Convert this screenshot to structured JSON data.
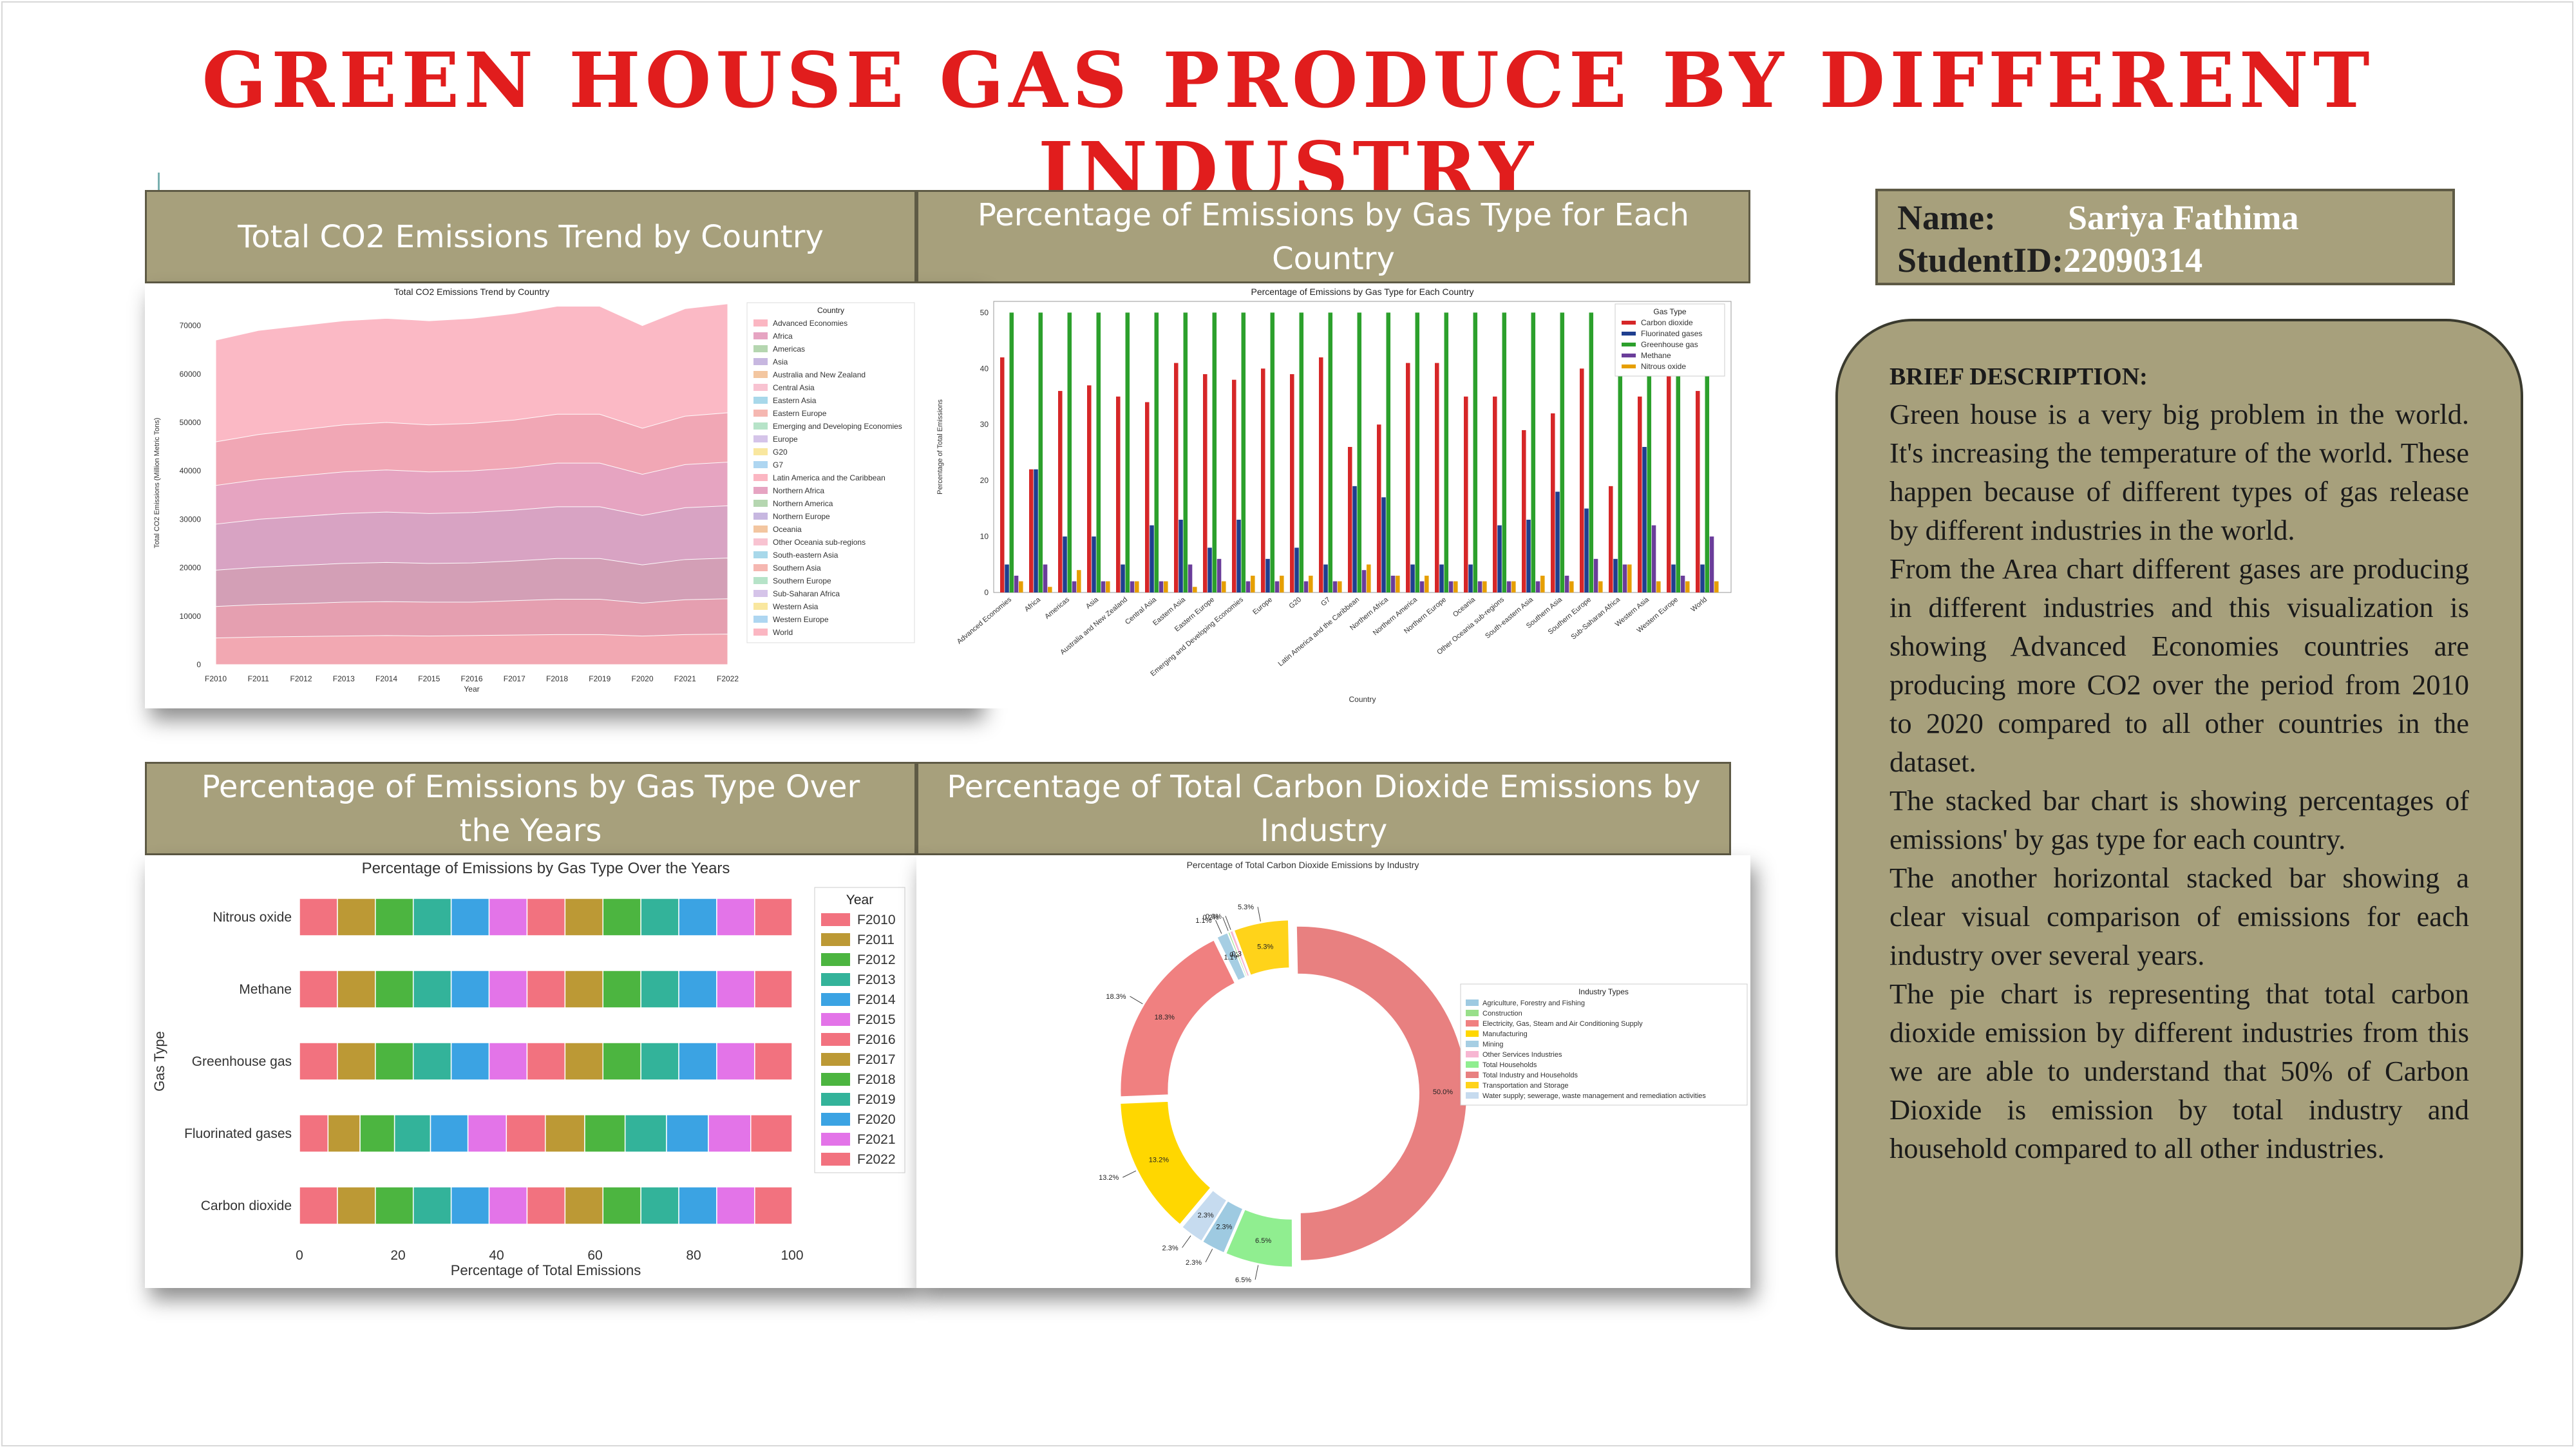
{
  "title": "GREEN HOUSE GAS PRODUCE BY DIFFERENT INDUSTRY",
  "headers": {
    "h1": "Total CO2 Emissions Trend by Country",
    "h2": "Percentage of Emissions by Gas Type for Each Country",
    "h3": "Percentage of Emissions by Gas Type Over the Years",
    "h4": "Percentage of Total Carbon Dioxide Emissions by Industry"
  },
  "student": {
    "name_label": "Name:",
    "name_value": "Sariya Fathima",
    "id_label": "StudentID:",
    "id_value": "22090314"
  },
  "description": {
    "heading": "BRIEF DESCRIPTION:",
    "paragraphs": [
      "Green house is a very big problem in the world. It's increasing the temperature of the world. These happen because of different types of gas release by different industries in the world.",
      "From the Area chart different gases are producing in different industries and this visualization is showing Advanced Economies countries are producing more CO2 over the period from 2010 to 2020 compared to all other countries in the dataset.",
      "The stacked bar chart is showing percentages of emissions' by gas type for each country.",
      "The another  horizontal stacked bar showing a clear visual comparison of emissions for each industry over several years.",
      "The pie chart is representing  that total carbon dioxide emission by different industries from this we are able to understand that 50% of Carbon Dioxide is emission by total industry and household compared to all other industries."
    ]
  },
  "chart_data": [
    {
      "type": "area",
      "title": "Total CO2 Emissions Trend by Country",
      "xlabel": "Year",
      "ylabel": "Total CO2 Emissions (Million Metric Tons)",
      "ylim": [
        0,
        75000
      ],
      "yticks": [
        0,
        10000,
        20000,
        30000,
        40000,
        50000,
        60000,
        70000
      ],
      "x": [
        "F2010",
        "F2011",
        "F2012",
        "F2013",
        "F2014",
        "F2015",
        "F2016",
        "F2017",
        "F2018",
        "F2019",
        "F2020",
        "F2021",
        "F2022"
      ],
      "legend_title": "Country",
      "legend_placement": "right",
      "series_names": [
        "Advanced Economies",
        "Africa",
        "Americas",
        "Asia",
        "Australia and New Zealand",
        "Central Asia",
        "Eastern Asia",
        "Eastern Europe",
        "Emerging and Developing Economies",
        "Europe",
        "G20",
        "G7",
        "Latin America and the Caribbean",
        "Northern Africa",
        "Northern America",
        "Northern Europe",
        "Oceania",
        "Other Oceania sub-regions",
        "South-eastern Asia",
        "Southern Asia",
        "Southern Europe",
        "Sub-Saharan Africa",
        "Western Asia",
        "Western Europe",
        "World"
      ],
      "total": [
        67000,
        69000,
        70000,
        71000,
        71500,
        71000,
        71500,
        72500,
        74000,
        74000,
        70000,
        73500,
        74500
      ],
      "layer_boundaries": [
        [
          46000,
          47500,
          48500,
          49500,
          50000,
          49500,
          49800,
          50500,
          51700,
          51700,
          48800,
          51300,
          52000
        ],
        [
          37000,
          38200,
          39000,
          39800,
          40200,
          39800,
          40000,
          40600,
          41600,
          41600,
          39300,
          41300,
          41800
        ],
        [
          29000,
          30000,
          30600,
          31200,
          31500,
          31200,
          31400,
          31900,
          32600,
          32600,
          30800,
          32400,
          32800
        ],
        [
          19500,
          20100,
          20500,
          20900,
          21100,
          20900,
          21000,
          21400,
          21900,
          21900,
          20600,
          21700,
          22000
        ],
        [
          12000,
          12400,
          12600,
          12900,
          13000,
          12900,
          12900,
          13200,
          13500,
          13500,
          12700,
          13400,
          13600
        ],
        [
          5500,
          5700,
          5800,
          5900,
          6000,
          5900,
          6000,
          6100,
          6200,
          6200,
          5900,
          6200,
          6300
        ]
      ]
    },
    {
      "type": "bar",
      "title": "Percentage of Emissions by Gas Type for Each Country",
      "xlabel": "Country",
      "ylabel": "Percentage of Total Emissions",
      "ylim": [
        0,
        52
      ],
      "yticks": [
        0,
        10,
        20,
        30,
        40,
        50
      ],
      "legend_title": "Gas Type",
      "legend_placement": "upper right",
      "categories": [
        "Advanced Economies",
        "Africa",
        "Americas",
        "Asia",
        "Australia and New Zealand",
        "Central Asia",
        "Eastern Asia",
        "Eastern Europe",
        "Emerging and Developing Economies",
        "Europe",
        "G20",
        "G7",
        "Latin America and the Caribbean",
        "Northern Africa",
        "Northern America",
        "Northern Europe",
        "Oceania",
        "Other Oceania sub-regions",
        "South-eastern Asia",
        "Southern Asia",
        "Southern Europe",
        "Sub-Saharan Africa",
        "Western Asia",
        "Western Europe",
        "World"
      ],
      "series": [
        {
          "name": "Carbon dioxide",
          "color": "#d62728",
          "values": [
            42,
            22,
            36,
            37,
            35,
            34,
            41,
            39,
            38,
            40,
            39,
            42,
            26,
            30,
            41,
            41,
            35,
            35,
            29,
            32,
            40,
            19,
            35,
            41,
            36
          ]
        },
        {
          "name": "Fluorinated gases",
          "color": "#1f3f8f",
          "values": [
            5,
            22,
            10,
            10,
            5,
            12,
            13,
            8,
            13,
            6,
            8,
            5,
            19,
            17,
            5,
            5,
            5,
            12,
            13,
            18,
            15,
            6,
            26,
            5,
            5
          ]
        },
        {
          "name": "Greenhouse gas",
          "color": "#2ca02c",
          "values": [
            50,
            50,
            50,
            50,
            50,
            50,
            50,
            50,
            50,
            50,
            50,
            50,
            50,
            50,
            50,
            50,
            50,
            50,
            50,
            50,
            50,
            50,
            50,
            50,
            50
          ]
        },
        {
          "name": "Methane",
          "color": "#6a3d9a",
          "values": [
            3,
            5,
            2,
            2,
            2,
            2,
            5,
            6,
            2,
            2,
            2,
            2,
            4,
            3,
            2,
            2,
            2,
            2,
            2,
            3,
            6,
            5,
            12,
            3,
            10
          ]
        },
        {
          "name": "Nitrous oxide",
          "color": "#e69f00",
          "values": [
            2,
            1,
            4,
            2,
            2,
            2,
            1,
            2,
            3,
            3,
            3,
            2,
            5,
            3,
            3,
            2,
            2,
            2,
            3,
            2,
            2,
            5,
            2,
            2,
            2
          ]
        }
      ]
    },
    {
      "type": "bar",
      "orientation": "horizontal-stacked",
      "title": "Percentage of Emissions by Gas Type Over the Years",
      "xlabel": "Percentage of Total Emissions",
      "ylabel": "Gas Type",
      "xlim": [
        0,
        100
      ],
      "xticks": [
        0,
        20,
        40,
        60,
        80,
        100
      ],
      "categories": [
        "Nitrous oxide",
        "Methane",
        "Greenhouse gas",
        "Fluorinated gases",
        "Carbon dioxide"
      ],
      "legend_title": "Year",
      "legend_placement": "right",
      "series": [
        {
          "name": "F2010",
          "color": "#f2727f",
          "values": [
            7.7,
            7.7,
            7.7,
            5.8,
            7.7
          ]
        },
        {
          "name": "F2011",
          "color": "#bc9935",
          "values": [
            7.7,
            7.7,
            7.7,
            6.5,
            7.7
          ]
        },
        {
          "name": "F2012",
          "color": "#4cb540",
          "values": [
            7.7,
            7.7,
            7.7,
            7.0,
            7.7
          ]
        },
        {
          "name": "F2013",
          "color": "#33b39a",
          "values": [
            7.7,
            7.7,
            7.7,
            7.3,
            7.7
          ]
        },
        {
          "name": "F2014",
          "color": "#3ba3e3",
          "values": [
            7.7,
            7.7,
            7.7,
            7.6,
            7.7
          ]
        },
        {
          "name": "F2015",
          "color": "#e374e8",
          "values": [
            7.7,
            7.7,
            7.7,
            7.8,
            7.7
          ]
        },
        {
          "name": "F2016",
          "color": "#f2727f",
          "values": [
            7.7,
            7.7,
            7.7,
            7.9,
            7.7
          ]
        },
        {
          "name": "F2017",
          "color": "#bc9935",
          "values": [
            7.7,
            7.7,
            7.7,
            8.0,
            7.7
          ]
        },
        {
          "name": "F2018",
          "color": "#4cb540",
          "values": [
            7.7,
            7.7,
            7.7,
            8.2,
            7.7
          ]
        },
        {
          "name": "F2019",
          "color": "#33b39a",
          "values": [
            7.7,
            7.7,
            7.7,
            8.4,
            7.7
          ]
        },
        {
          "name": "F2020",
          "color": "#3ba3e3",
          "values": [
            7.7,
            7.7,
            7.7,
            8.5,
            7.7
          ]
        },
        {
          "name": "F2021",
          "color": "#e374e8",
          "values": [
            7.7,
            7.7,
            7.7,
            8.6,
            7.7
          ]
        },
        {
          "name": "F2022",
          "color": "#f2727f",
          "values": [
            7.6,
            7.6,
            7.6,
            8.4,
            7.6
          ]
        }
      ]
    },
    {
      "type": "pie",
      "style": "donut",
      "title": "Percentage of Total Carbon Dioxide Emissions by Industry",
      "legend_title": "Industry Types",
      "legend_placement": "right",
      "categories": [
        "Agriculture, Forestry and Fishing",
        "Construction",
        "Electricity, Gas, Steam and Air Conditioning Supply",
        "Manufacturing",
        "Mining",
        "Other Services Industries",
        "Total Households",
        "Total Industry and Households",
        "Transportation and Storage",
        "Water supply; sewerage, waste management and remediation activities"
      ],
      "colors": [
        "#9ecae1",
        "#98df8a",
        "#f08080",
        "#ffd700",
        "#a6cee3",
        "#f7b6d2",
        "#90ee90",
        "#e88080",
        "#ffd31a",
        "#c6dbef"
      ],
      "values": [
        2.3,
        0.2,
        18.3,
        13.2,
        1.1,
        0.3,
        6.5,
        50.0,
        5.3,
        2.3
      ],
      "labels": [
        "2.3%",
        "0.2%",
        "18.3%",
        "13.2%",
        "1.1%",
        "0.3%",
        "6.5%",
        "50.0%",
        "5.3%",
        "2.3%"
      ]
    }
  ]
}
